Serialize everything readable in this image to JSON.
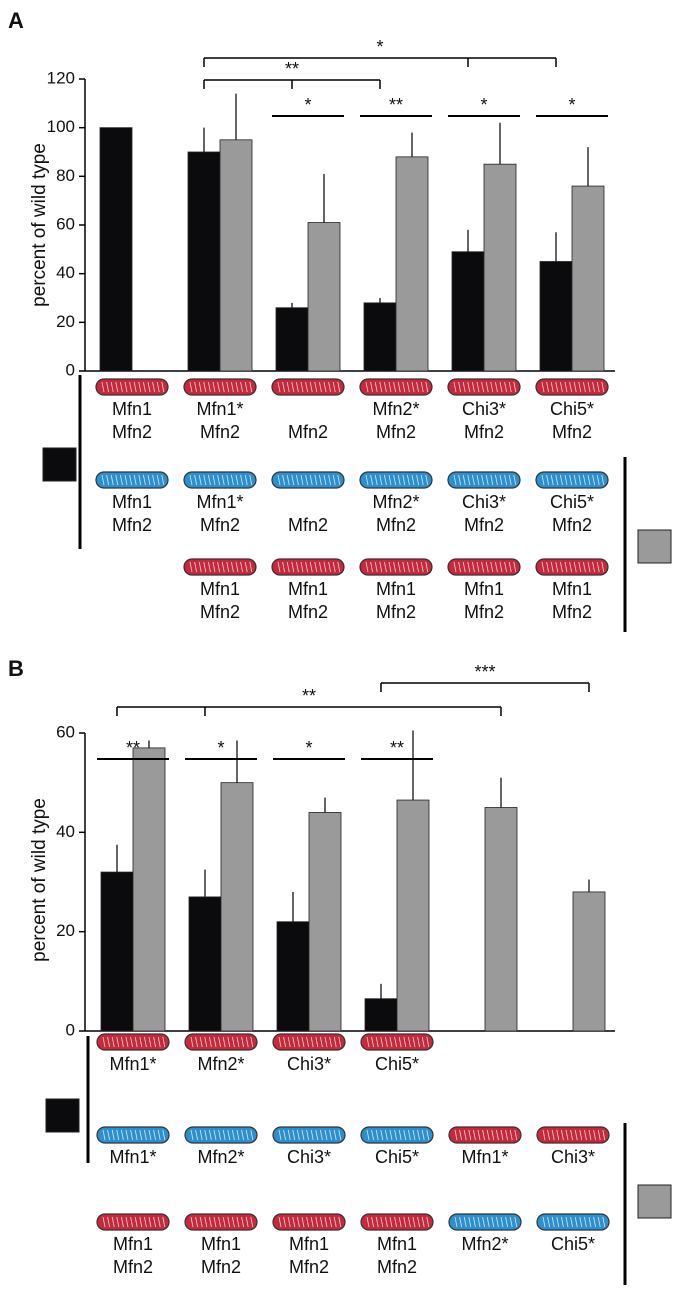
{
  "chart_data": [
    {
      "type": "bar",
      "panel": "A",
      "y_label": "percent of wild type",
      "categories": [
        null,
        null,
        null,
        null,
        null,
        null
      ],
      "ylim": [
        0,
        120
      ],
      "yticks": [
        0,
        20,
        40,
        60,
        80,
        100,
        120
      ],
      "series": [
        {
          "color": "#0b0b0d",
          "values": [
            100,
            90,
            26,
            28,
            49,
            45
          ],
          "errors": [
            null,
            10,
            2,
            2,
            9,
            12
          ]
        },
        {
          "color": "#9a9a9a",
          "values": [
            null,
            95,
            61,
            88,
            85,
            76
          ],
          "errors": [
            null,
            19,
            20,
            10,
            17,
            16
          ]
        }
      ],
      "comparisons": [
        {
          "label": "*",
          "bars": [
            [
              0,
              1
            ],
            [
              0,
              4
            ],
            [
              0,
              5
            ]
          ]
        },
        {
          "label": "**",
          "bars": [
            [
              0,
              1
            ],
            [
              0,
              2
            ],
            [
              0,
              3
            ]
          ]
        },
        {
          "label": "*",
          "bars": [
            [
              0,
              2
            ],
            [
              1,
              2
            ]
          ]
        },
        {
          "label": "**",
          "bars": [
            [
              0,
              3
            ],
            [
              1,
              3
            ]
          ]
        },
        {
          "label": "*",
          "bars": [
            [
              0,
              4
            ],
            [
              1,
              4
            ]
          ]
        },
        {
          "label": "*",
          "bars": [
            [
              0,
              5
            ],
            [
              1,
              5
            ]
          ]
        }
      ],
      "genotype_rows": [
        [
          {
            "icon": "#c8283c",
            "lines": [
              "Mfn1",
              "Mfn2"
            ]
          },
          {
            "icon": "#c8283c",
            "lines": [
              "Mfn1*",
              "Mfn2"
            ]
          },
          {
            "icon": "#c8283c",
            "lines": [
              null,
              "Mfn2"
            ]
          },
          {
            "icon": "#c8283c",
            "lines": [
              "Mfn2*",
              "Mfn2"
            ]
          },
          {
            "icon": "#c8283c",
            "lines": [
              "Chi3*",
              "Mfn2"
            ]
          },
          {
            "icon": "#c8283c",
            "lines": [
              "Chi5*",
              "Mfn2"
            ]
          }
        ],
        [
          {
            "icon": "#2b8fd0",
            "lines": [
              "Mfn1",
              "Mfn2"
            ]
          },
          {
            "icon": "#2b8fd0",
            "lines": [
              "Mfn1*",
              "Mfn2"
            ]
          },
          {
            "icon": "#2b8fd0",
            "lines": [
              null,
              "Mfn2"
            ]
          },
          {
            "icon": "#2b8fd0",
            "lines": [
              "Mfn2*",
              "Mfn2"
            ]
          },
          {
            "icon": "#2b8fd0",
            "lines": [
              "Chi3*",
              "Mfn2"
            ]
          },
          {
            "icon": "#2b8fd0",
            "lines": [
              "Chi5*",
              "Mfn2"
            ]
          }
        ],
        [
          null,
          {
            "icon": "#c8283c",
            "lines": [
              "Mfn1",
              "Mfn2"
            ]
          },
          {
            "icon": "#c8283c",
            "lines": [
              "Mfn1",
              "Mfn2"
            ]
          },
          {
            "icon": "#c8283c",
            "lines": [
              "Mfn1",
              "Mfn2"
            ]
          },
          {
            "icon": "#c8283c",
            "lines": [
              "Mfn1",
              "Mfn2"
            ]
          },
          {
            "icon": "#c8283c",
            "lines": [
              "Mfn1",
              "Mfn2"
            ]
          }
        ]
      ]
    },
    {
      "type": "bar",
      "panel": "B",
      "y_label": "percent of wild type",
      "categories": [
        null,
        null,
        null,
        null,
        null,
        null
      ],
      "ylim": [
        0,
        60
      ],
      "yticks": [
        0,
        20,
        40,
        60
      ],
      "series": [
        {
          "color": "#0b0b0d",
          "values": [
            32,
            27,
            22,
            6.5,
            null,
            null
          ],
          "errors": [
            5.5,
            5.5,
            6,
            3,
            null,
            null
          ]
        },
        {
          "color": "#9a9a9a",
          "values": [
            57,
            50,
            44,
            46.5,
            45,
            28
          ],
          "errors": [
            1.5,
            8.5,
            3,
            14,
            6,
            2.5
          ]
        }
      ],
      "comparisons": [
        {
          "label": "**",
          "bars": [
            [
              0,
              0
            ],
            [
              1,
              0
            ]
          ]
        },
        {
          "label": "*",
          "bars": [
            [
              0,
              1
            ],
            [
              1,
              1
            ]
          ]
        },
        {
          "label": "*",
          "bars": [
            [
              0,
              2
            ],
            [
              1,
              2
            ]
          ]
        },
        {
          "label": "**",
          "bars": [
            [
              0,
              3
            ],
            [
              1,
              3
            ]
          ]
        },
        {
          "label": "**",
          "bars": [
            [
              0,
              0
            ],
            [
              0,
              1
            ],
            [
              1,
              4
            ]
          ]
        },
        {
          "label": "***",
          "bars": [
            [
              0,
              3
            ],
            [
              1,
              5
            ]
          ]
        }
      ],
      "genotype_rows": [
        [
          {
            "icon": "#c8283c",
            "lines": [
              "Mfn1*"
            ]
          },
          {
            "icon": "#c8283c",
            "lines": [
              "Mfn2*"
            ]
          },
          {
            "icon": "#c8283c",
            "lines": [
              "Chi3*"
            ]
          },
          {
            "icon": "#c8283c",
            "lines": [
              "Chi5*"
            ]
          },
          null,
          null
        ],
        [
          {
            "icon": "#2b8fd0",
            "lines": [
              "Mfn1*"
            ]
          },
          {
            "icon": "#2b8fd0",
            "lines": [
              "Mfn2*"
            ]
          },
          {
            "icon": "#2b8fd0",
            "lines": [
              "Chi3*"
            ]
          },
          {
            "icon": "#2b8fd0",
            "lines": [
              "Chi5*"
            ]
          },
          {
            "icon": "#c8283c",
            "lines": [
              "Mfn1*"
            ]
          },
          {
            "icon": "#c8283c",
            "lines": [
              "Chi3*"
            ]
          }
        ],
        [
          {
            "icon": "#c8283c",
            "lines": [
              "Mfn1",
              "Mfn2"
            ]
          },
          {
            "icon": "#c8283c",
            "lines": [
              "Mfn1",
              "Mfn2"
            ]
          },
          {
            "icon": "#c8283c",
            "lines": [
              "Mfn1",
              "Mfn2"
            ]
          },
          {
            "icon": "#c8283c",
            "lines": [
              "Mfn1",
              "Mfn2"
            ]
          },
          {
            "icon": "#2b8fd0",
            "lines": [
              "Mfn2*"
            ]
          },
          {
            "icon": "#2b8fd0",
            "lines": [
              "Chi5*"
            ]
          }
        ]
      ]
    }
  ]
}
